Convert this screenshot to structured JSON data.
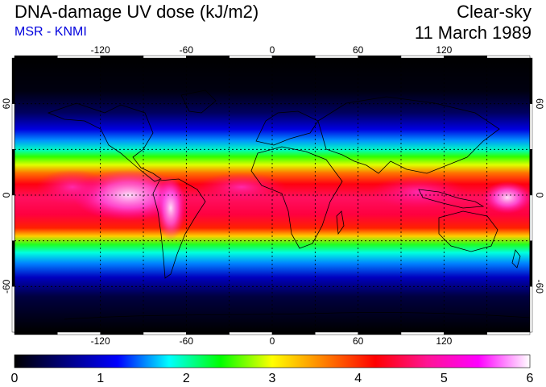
{
  "header": {
    "title": "DNA-damage UV dose (kJ/m2)",
    "subtitle": "MSR - KNMI",
    "condition": "Clear-sky",
    "date": "11 March 1989"
  },
  "map": {
    "lon_ticks": [
      -120,
      -60,
      0,
      60,
      120
    ],
    "lat_ticks": [
      60,
      0,
      -60
    ],
    "lon_range": [
      -180,
      180
    ],
    "lat_range": [
      -90,
      90
    ],
    "gridlines": "dotted",
    "gridline_lats": [
      60,
      30,
      0,
      -30,
      -60
    ],
    "gridline_lons": [
      -120,
      -90,
      -60,
      -30,
      0,
      30,
      60,
      90,
      120,
      150
    ]
  },
  "colorbar": {
    "labels": [
      "0",
      "1",
      "2",
      "3",
      "4",
      "5",
      "6"
    ],
    "min": 0,
    "max": 6,
    "stops": [
      "#000000",
      "#000080",
      "#0000ff",
      "#00ffff",
      "#00ff00",
      "#ffff00",
      "#ff8000",
      "#ff0000",
      "#ff1493",
      "#ff00ff",
      "#ffffff"
    ]
  },
  "colors": {
    "subtitle": "#0000dd",
    "grid": "#000000"
  }
}
